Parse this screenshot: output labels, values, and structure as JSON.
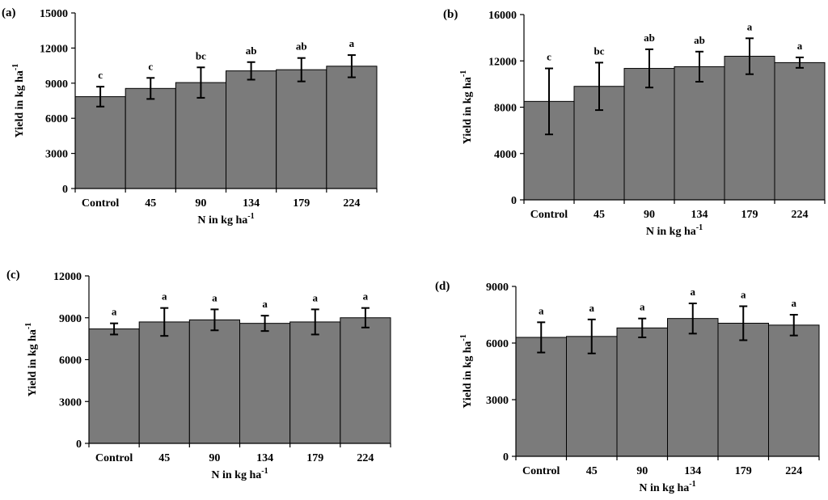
{
  "chart_data": [
    {
      "type": "bar",
      "panel_label": "(a)",
      "categories": [
        "Control",
        "45",
        "90",
        "134",
        "179",
        "224"
      ],
      "values": [
        7850,
        8550,
        9050,
        10050,
        10150,
        10450
      ],
      "errors": [
        850,
        900,
        1300,
        750,
        1000,
        950
      ],
      "significance": [
        "c",
        "c",
        "bc",
        "ab",
        "ab",
        "a"
      ],
      "yticks": [
        "0",
        "3000",
        "6000",
        "9000",
        "12000",
        "15000"
      ],
      "ylim": [
        0,
        15000
      ],
      "ylabel": "Yield in kg ha",
      "ylabel_sup": "-1",
      "xlabel": "N in kg ha",
      "xlabel_sup": "-1"
    },
    {
      "type": "bar",
      "panel_label": "(b)",
      "categories": [
        "Control",
        "45",
        "90",
        "134",
        "179",
        "224"
      ],
      "values": [
        8500,
        9800,
        11350,
        11500,
        12400,
        11850
      ],
      "errors": [
        2850,
        2050,
        1650,
        1300,
        1550,
        450
      ],
      "significance": [
        "c",
        "bc",
        "ab",
        "ab",
        "a",
        "a"
      ],
      "yticks": [
        "0",
        "4000",
        "8000",
        "12000",
        "16000"
      ],
      "ylim": [
        0,
        16000
      ],
      "ylabel": "Yield in kg ha",
      "ylabel_sup": "-1",
      "xlabel": "N in kg ha",
      "xlabel_sup": "-1"
    },
    {
      "type": "bar",
      "panel_label": "(c)",
      "categories": [
        "Control",
        "45",
        "90",
        "134",
        "179",
        "224"
      ],
      "values": [
        8200,
        8700,
        8850,
        8600,
        8700,
        9000
      ],
      "errors": [
        400,
        1000,
        750,
        550,
        900,
        700
      ],
      "significance": [
        "a",
        "a",
        "a",
        "a",
        "a",
        "a"
      ],
      "yticks": [
        "0",
        "3000",
        "6000",
        "9000",
        "12000"
      ],
      "ylim": [
        0,
        12000
      ],
      "ylabel": "Yield in kg ha",
      "ylabel_sup": "-1",
      "xlabel": "N in kg ha",
      "xlabel_sup": "-1"
    },
    {
      "type": "bar",
      "panel_label": "(d)",
      "categories": [
        "Control",
        "45",
        "90",
        "134",
        "179",
        "224"
      ],
      "values": [
        6300,
        6350,
        6800,
        7300,
        7050,
        6950
      ],
      "errors": [
        800,
        900,
        500,
        800,
        900,
        550
      ],
      "significance": [
        "a",
        "a",
        "a",
        "a",
        "a",
        "a"
      ],
      "yticks": [
        "0",
        "3000",
        "6000",
        "9000"
      ],
      "ylim": [
        0,
        9000
      ],
      "ylabel": "Yield in kg ha",
      "ylabel_sup": "-1",
      "xlabel": "N in kg ha",
      "xlabel_sup": "-1"
    }
  ]
}
